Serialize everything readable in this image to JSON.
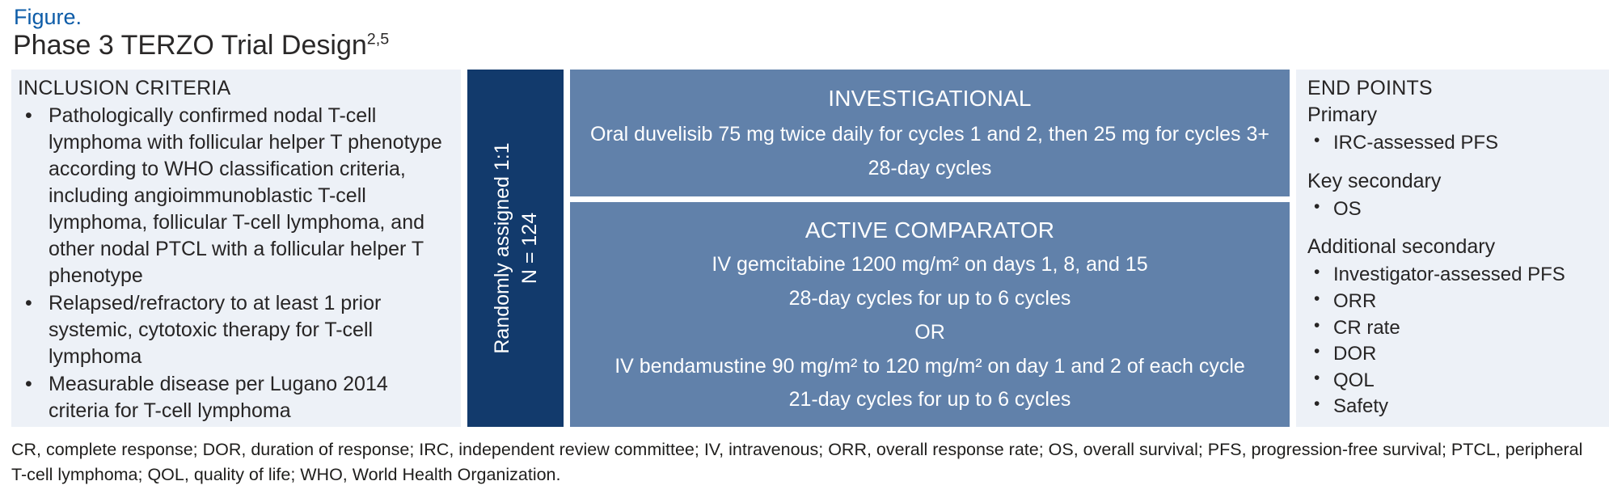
{
  "header": {
    "figure_label": "Figure.",
    "title": "Phase 3 TERZO Trial Design",
    "title_refs": "2,5"
  },
  "inclusion": {
    "title": "INCLUSION CRITERIA",
    "items": [
      "Pathologically confirmed nodal T-cell lymphoma with follicular helper T phenotype according to WHO classification criteria, including angioimmunoblastic T-cell lymphoma, follicular T-cell lymphoma, and other nodal PTCL with a follicular helper T phenotype",
      "Relapsed/refractory to at least 1 prior systemic, cytotoxic therapy for T-cell lymphoma",
      "Measurable disease per Lugano 2014 criteria for T-cell lymphoma"
    ]
  },
  "randomization": {
    "line1": "Randomly assigned 1:1",
    "line2": "N = 124"
  },
  "arms": {
    "investigational": {
      "title": "INVESTIGATIONAL",
      "lines": [
        "Oral duvelisib 75 mg twice daily for cycles 1 and 2, then 25 mg for cycles 3+",
        "28-day cycles"
      ]
    },
    "comparator": {
      "title": "ACTIVE COMPARATOR",
      "lines": [
        "IV gemcitabine 1200 mg/m² on days 1, 8, and 15",
        "28-day cycles for up to 6 cycles",
        "OR",
        "IV bendamustine 90 mg/m² to 120 mg/m² on day 1 and 2 of each cycle",
        "21-day cycles for up to 6 cycles"
      ]
    }
  },
  "endpoints": {
    "title": "END POINTS",
    "groups": [
      {
        "label": "Primary",
        "items": [
          "IRC-assessed PFS"
        ]
      },
      {
        "label": "Key secondary",
        "items": [
          "OS"
        ]
      },
      {
        "label": "Additional secondary",
        "items": [
          "Investigator-assessed PFS",
          "ORR",
          "CR rate",
          "DOR",
          "QOL",
          "Safety"
        ]
      }
    ]
  },
  "footnote": "CR, complete response; DOR, duration of response; IRC, independent review committee; IV, intravenous; ORR, overall response rate; OS, overall survival; PFS, progression-free survival; PTCL, peripheral T-cell lymphoma; QOL, quality of life; WHO, World Health Organization.",
  "colors": {
    "figure_blue": "#0d5ca8",
    "navy": "#123a6c",
    "arm_blue": "#6181aa",
    "panel_bg": "#edf1f7",
    "text_dark": "#272525"
  }
}
